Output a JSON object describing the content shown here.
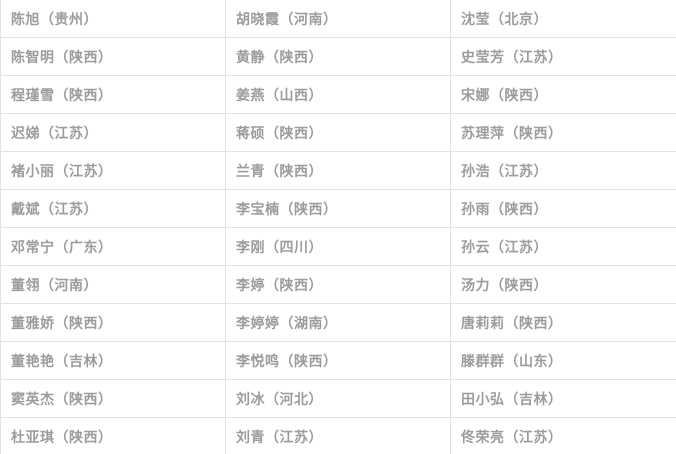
{
  "page": {
    "background_color": "#ffffff",
    "table_border_color": "#e2e2e2",
    "text_color": "#9c9c9c"
  },
  "table": {
    "rows": [
      [
        "陈旭（贵州）",
        "胡晓霞（河南）",
        "沈莹（北京）"
      ],
      [
        "陈智明（陕西）",
        "黄静（陕西）",
        "史莹芳（江苏）"
      ],
      [
        "程瑾雪（陕西）",
        "姜燕（山西）",
        "宋娜（陕西）"
      ],
      [
        "迟娣（江苏）",
        "蒋硕（陕西）",
        "苏理萍（陕西）"
      ],
      [
        "褚小丽（江苏）",
        "兰青（陕西）",
        "孙浩（江苏）"
      ],
      [
        "戴斌（江苏）",
        "李宝楠（陕西）",
        "孙雨（陕西）"
      ],
      [
        "邓常宁（广东）",
        "李刚（四川）",
        "孙云（江苏）"
      ],
      [
        "董翎（河南）",
        "李婷（陕西）",
        "汤力（陕西）"
      ],
      [
        "董雅娇（陕西）",
        "李婷婷（湖南）",
        "唐莉莉（陕西）"
      ],
      [
        "董艳艳（吉林）",
        "李悦鸣（陕西）",
        "滕群群（山东）"
      ],
      [
        "窦英杰（陕西）",
        "刘冰（河北）",
        "田小弘（吉林）"
      ],
      [
        "杜亚琪（陕西）",
        "刘青（江苏）",
        "佟荣亮（江苏）"
      ]
    ]
  }
}
